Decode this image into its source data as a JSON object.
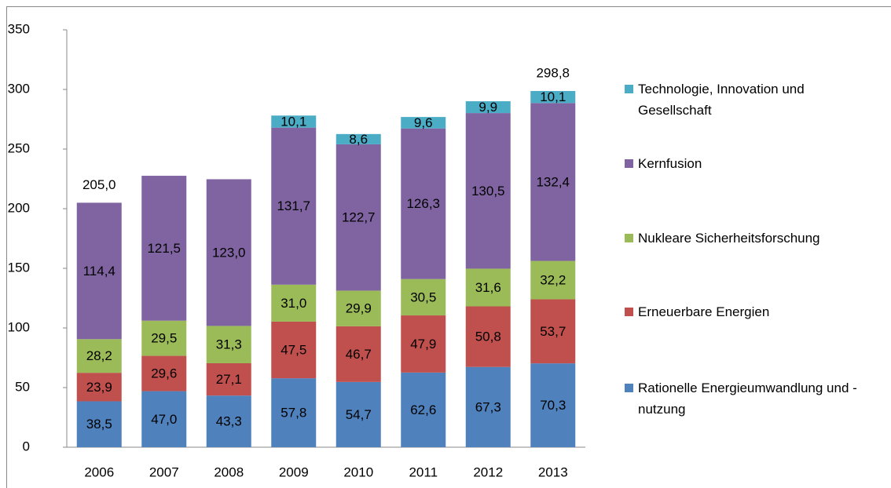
{
  "chart_data": {
    "type": "stacked_bar",
    "categories": [
      "2006",
      "2007",
      "2008",
      "2009",
      "2010",
      "2011",
      "2012",
      "2013"
    ],
    "series": [
      {
        "name": "Rationelle Energieumwandlung und -nutzung",
        "color": "#4f81bd",
        "values": [
          38.5,
          47.0,
          43.3,
          57.8,
          54.7,
          62.6,
          67.3,
          70.3
        ],
        "value_labels": [
          "38,5",
          "47,0",
          "43,3",
          "57,8",
          "54,7",
          "62,6",
          "67,3",
          "70,3"
        ]
      },
      {
        "name": "Erneuerbare Energien",
        "color": "#c0504d",
        "values": [
          23.9,
          29.6,
          27.1,
          47.5,
          46.7,
          47.9,
          50.8,
          53.7
        ],
        "value_labels": [
          "23,9",
          "29,6",
          "27,1",
          "47,5",
          "46,7",
          "47,9",
          "50,8",
          "53,7"
        ]
      },
      {
        "name": "Nukleare Sicherheitsforschung",
        "color": "#9bbb59",
        "values": [
          28.2,
          29.5,
          31.3,
          31.0,
          29.9,
          30.5,
          31.6,
          32.2
        ],
        "value_labels": [
          "28,2",
          "29,5",
          "31,3",
          "31,0",
          "29,9",
          "30,5",
          "31,6",
          "32,2"
        ]
      },
      {
        "name": "Kernfusion",
        "color": "#8064a2",
        "values": [
          114.4,
          121.5,
          123.0,
          131.7,
          122.7,
          126.3,
          130.5,
          132.4
        ],
        "value_labels": [
          "114,4",
          "121,5",
          "123,0",
          "131,7",
          "122,7",
          "126,3",
          "130,5",
          "132,4"
        ]
      },
      {
        "name": "Technologie, Innovation und Gesellschaft",
        "color": "#4bacc6",
        "values": [
          null,
          null,
          null,
          10.1,
          8.6,
          9.6,
          9.9,
          10.1
        ],
        "value_labels": [
          null,
          null,
          null,
          "10,1",
          "8,6",
          "9,6",
          "9,9",
          "10,1"
        ]
      }
    ],
    "totals": [
      205.0,
      null,
      null,
      null,
      null,
      null,
      null,
      298.8
    ],
    "total_labels": [
      "205,0",
      null,
      null,
      null,
      null,
      null,
      null,
      "298,8"
    ],
    "ylim": [
      0,
      350
    ],
    "yticks": [
      0,
      50,
      100,
      150,
      200,
      250,
      300,
      350
    ],
    "legend": "right"
  }
}
